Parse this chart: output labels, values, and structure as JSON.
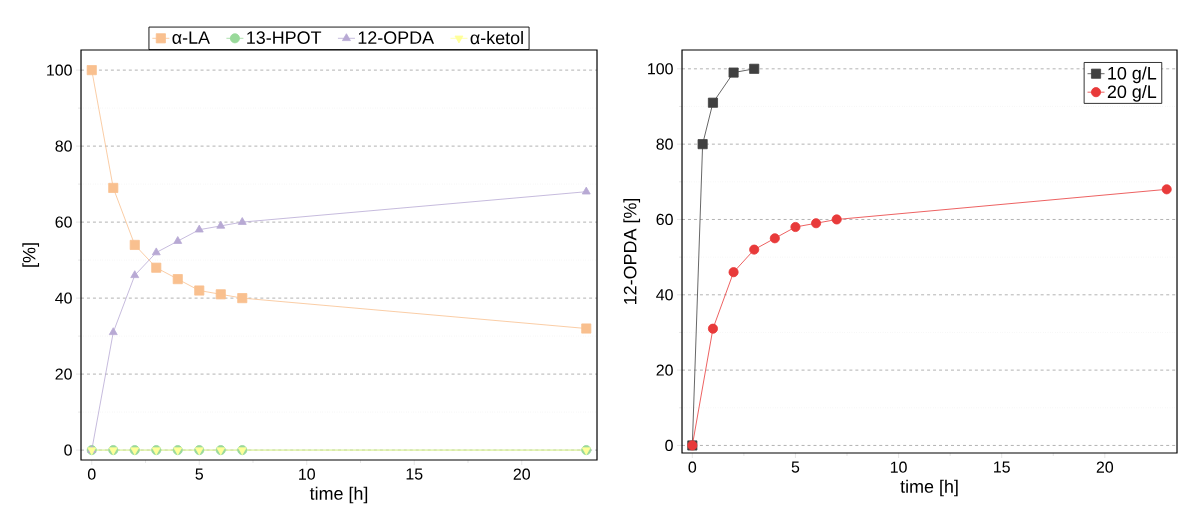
{
  "chart_data": [
    {
      "type": "line",
      "xlabel": "time [h]",
      "ylabel": "[%]",
      "xlim": [
        -0.5,
        23.5
      ],
      "ylim": [
        -2.6,
        105.3
      ],
      "xticks": [
        0,
        5,
        10,
        15,
        20
      ],
      "yticks": [
        0,
        20,
        40,
        60,
        80,
        100
      ],
      "grid": "y",
      "legend": "top",
      "x": [
        0,
        1,
        2,
        3,
        4,
        5,
        6,
        7,
        23
      ],
      "series": [
        {
          "name": "α-LA",
          "color": "#f9c08f",
          "marker": "square",
          "values": [
            100,
            69,
            54,
            48,
            45,
            42,
            41,
            40,
            32
          ]
        },
        {
          "name": "13-HPOT",
          "color": "#99d99a",
          "marker": "circle",
          "values": [
            0,
            0,
            0,
            0,
            0,
            0,
            0,
            0,
            0
          ]
        },
        {
          "name": "12-OPDA",
          "color": "#b8a9d4",
          "marker": "triangle",
          "values": [
            0,
            31,
            46,
            52,
            55,
            58,
            59,
            60,
            68
          ]
        },
        {
          "name": "α-ketol",
          "color": "#ffff99",
          "marker": "triangle-down",
          "values": [
            0,
            0,
            0,
            0,
            0,
            0,
            0,
            0,
            0
          ]
        }
      ]
    },
    {
      "type": "line",
      "xlabel": "time [h]",
      "ylabel": "12-OPDA [%]",
      "xlim": [
        -0.5,
        23.5
      ],
      "ylim": [
        -2,
        105
      ],
      "xticks": [
        0,
        5,
        10,
        15,
        20
      ],
      "yticks": [
        0,
        20,
        40,
        60,
        80,
        100
      ],
      "grid": "y",
      "legend": "top right",
      "series": [
        {
          "name": "10 g/L",
          "color": "#404040",
          "marker": "square",
          "x": [
            0,
            0.5,
            1,
            2,
            3
          ],
          "values": [
            0,
            80,
            91,
            99,
            100
          ]
        },
        {
          "name": "20 g/L",
          "color": "#e83a3a",
          "marker": "circle",
          "x": [
            0,
            1,
            2,
            3,
            4,
            5,
            6,
            7,
            23
          ],
          "values": [
            0,
            31,
            46,
            52,
            55,
            58,
            59,
            60,
            68
          ]
        }
      ]
    }
  ]
}
